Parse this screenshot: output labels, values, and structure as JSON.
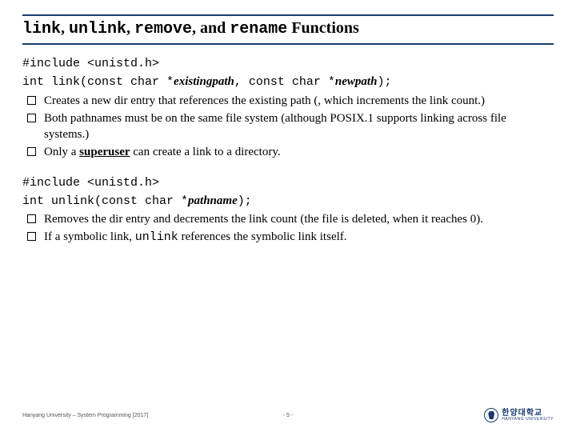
{
  "title": {
    "fn1": "link",
    "sep": ", ",
    "fn2": "unlink",
    "fn3": "remove",
    "sep_and": ", and ",
    "fn4": "rename",
    "tail": " Functions"
  },
  "block1": {
    "include": "#include <unistd.h>",
    "sig_pre": "int link(const char *",
    "sig_p1": "existingpath",
    "sig_mid": ", const char *",
    "sig_p2": "newpath",
    "sig_post": ");",
    "bullets": [
      "Creates a new dir entry that references the existing path (, which increments the link count.)",
      "Both pathnames must be on the same file system (although POSIX.1 supports linking across file systems.)",
      {
        "pre": "Only a ",
        "u": "superuser",
        "post": " can create a link to a directory."
      }
    ]
  },
  "block2": {
    "include": "#include <unistd.h>",
    "sig_pre": "int unlink(const char *",
    "sig_p1": "pathname",
    "sig_post": ");",
    "bullets": [
      "Removes the dir entry and decrements the link count (the file is deleted, when it reaches 0).",
      {
        "pre": "If a symbolic link, ",
        "mono": "unlink",
        "post": " references the symbolic link itself."
      }
    ]
  },
  "footer": {
    "left": "Hanyang University – System Programming  [2017]",
    "page": "- 5 -",
    "logo_kr": "한양대학교",
    "logo_en": "HANYANG UNIVERSITY"
  },
  "colors": {
    "rule": "#1a3a6e",
    "text": "#000000",
    "bg": "#ffffff"
  }
}
